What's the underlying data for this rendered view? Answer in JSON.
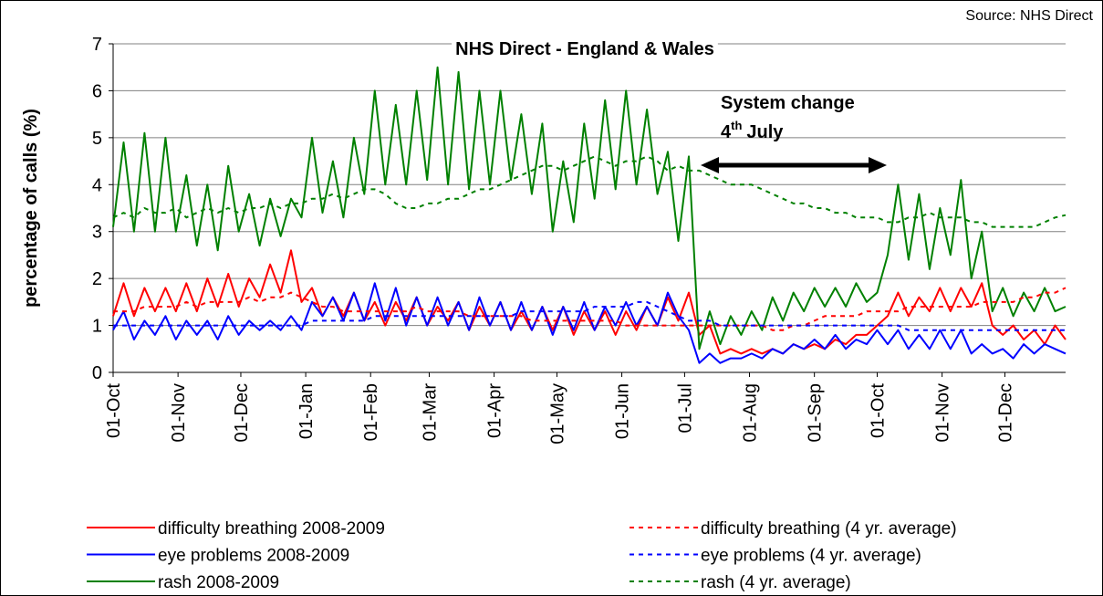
{
  "chart_data": {
    "type": "line",
    "title": "NHS Direct - England & Wales",
    "source": "Source: NHS Direct",
    "y_label": "percentage of calls (%)",
    "annotation": {
      "line1": "System change",
      "day": "4",
      "suffix": "th",
      "month": "July"
    },
    "x": [
      0,
      5,
      10,
      15,
      20,
      25,
      30,
      35,
      40,
      45,
      50,
      55,
      60,
      65,
      70,
      75,
      80,
      85,
      90,
      95,
      100,
      105,
      110,
      115,
      120,
      125,
      130,
      135,
      140,
      145,
      150,
      155,
      160,
      165,
      170,
      175,
      180,
      185,
      190,
      195,
      200,
      205,
      210,
      215,
      220,
      225,
      230,
      235,
      240,
      245,
      250,
      255,
      260,
      265,
      270,
      275,
      280,
      285,
      290,
      295,
      300,
      305,
      310,
      315,
      320,
      325,
      330,
      335,
      340,
      345,
      350,
      355,
      360,
      365,
      370,
      375,
      380,
      385,
      390,
      395,
      400,
      405,
      410,
      415,
      420,
      425,
      430,
      435,
      440,
      445,
      450,
      455
    ],
    "xlim": [
      0,
      455
    ],
    "xticks": [
      {
        "value": 0,
        "label": "01-Oct"
      },
      {
        "value": 31,
        "label": "01-Nov"
      },
      {
        "value": 61,
        "label": "01-Dec"
      },
      {
        "value": 92,
        "label": "01-Jan"
      },
      {
        "value": 123,
        "label": "01-Feb"
      },
      {
        "value": 151,
        "label": "01-Mar"
      },
      {
        "value": 182,
        "label": "01-Apr"
      },
      {
        "value": 212,
        "label": "01-May"
      },
      {
        "value": 243,
        "label": "01-Jun"
      },
      {
        "value": 273,
        "label": "01-Jul"
      },
      {
        "value": 304,
        "label": "01-Aug"
      },
      {
        "value": 335,
        "label": "01-Sep"
      },
      {
        "value": 365,
        "label": "01-Oct"
      },
      {
        "value": 396,
        "label": "01-Nov"
      },
      {
        "value": 426,
        "label": "01-Dec"
      }
    ],
    "ylim": [
      0,
      7
    ],
    "yticks": [
      0,
      1,
      2,
      3,
      4,
      5,
      6,
      7
    ],
    "grid": true,
    "series": [
      {
        "name": "difficulty breathing 2008-2009",
        "color": "#ff0000",
        "dash": false,
        "values": [
          1.2,
          1.9,
          1.2,
          1.8,
          1.3,
          1.8,
          1.3,
          1.9,
          1.3,
          2.0,
          1.4,
          2.1,
          1.4,
          2.0,
          1.6,
          2.3,
          1.7,
          2.6,
          1.5,
          1.8,
          1.2,
          1.6,
          1.2,
          1.7,
          1.1,
          1.5,
          1.0,
          1.5,
          1.1,
          1.6,
          1.0,
          1.4,
          1.1,
          1.5,
          0.9,
          1.4,
          1.0,
          1.5,
          0.9,
          1.3,
          0.9,
          1.4,
          0.9,
          1.4,
          0.8,
          1.3,
          0.9,
          1.3,
          0.8,
          1.3,
          0.9,
          1.4,
          1.0,
          1.6,
          1.1,
          1.7,
          0.8,
          1.0,
          0.4,
          0.5,
          0.4,
          0.5,
          0.4,
          0.5,
          0.4,
          0.6,
          0.5,
          0.6,
          0.5,
          0.7,
          0.6,
          0.8,
          0.8,
          1.0,
          1.2,
          1.7,
          1.2,
          1.6,
          1.3,
          1.8,
          1.3,
          1.8,
          1.4,
          1.9,
          1.0,
          0.8,
          1.0,
          0.7,
          0.9,
          0.6,
          1.0,
          0.7
        ]
      },
      {
        "name": "eye problems 2008-2009",
        "color": "#0000ff",
        "dash": false,
        "values": [
          0.9,
          1.3,
          0.7,
          1.1,
          0.8,
          1.2,
          0.7,
          1.1,
          0.8,
          1.1,
          0.7,
          1.2,
          0.8,
          1.1,
          0.9,
          1.1,
          0.9,
          1.2,
          0.9,
          1.5,
          1.2,
          1.6,
          1.1,
          1.7,
          1.1,
          1.9,
          1.1,
          1.8,
          1.0,
          1.6,
          1.0,
          1.6,
          1.0,
          1.5,
          0.9,
          1.6,
          1.0,
          1.5,
          0.9,
          1.5,
          0.9,
          1.4,
          0.8,
          1.4,
          0.9,
          1.5,
          0.9,
          1.4,
          1.0,
          1.5,
          1.0,
          1.4,
          1.0,
          1.7,
          1.2,
          0.9,
          0.2,
          0.4,
          0.2,
          0.3,
          0.3,
          0.4,
          0.3,
          0.5,
          0.4,
          0.6,
          0.5,
          0.7,
          0.5,
          0.8,
          0.5,
          0.7,
          0.6,
          0.9,
          0.6,
          0.9,
          0.5,
          0.8,
          0.5,
          0.9,
          0.5,
          0.9,
          0.4,
          0.6,
          0.4,
          0.5,
          0.3,
          0.6,
          0.4,
          0.6,
          0.5,
          0.4
        ]
      },
      {
        "name": "rash 2008-2009",
        "color": "#008000",
        "dash": false,
        "values": [
          3.1,
          4.9,
          3.0,
          5.1,
          3.0,
          5.0,
          3.0,
          4.2,
          2.7,
          4.0,
          2.6,
          4.4,
          3.0,
          3.8,
          2.7,
          3.7,
          2.9,
          3.7,
          3.3,
          5.0,
          3.4,
          4.5,
          3.3,
          5.0,
          3.8,
          6.0,
          4.0,
          5.7,
          4.0,
          6.0,
          4.1,
          6.5,
          4.0,
          6.4,
          3.9,
          6.0,
          4.0,
          6.0,
          4.1,
          5.5,
          3.8,
          5.3,
          3.0,
          4.5,
          3.2,
          5.3,
          3.7,
          5.8,
          3.9,
          6.0,
          4.0,
          5.6,
          3.8,
          4.7,
          2.8,
          4.6,
          0.5,
          1.3,
          0.6,
          1.2,
          0.8,
          1.3,
          0.9,
          1.6,
          1.1,
          1.7,
          1.3,
          1.8,
          1.4,
          1.8,
          1.4,
          1.9,
          1.5,
          1.7,
          2.5,
          4.0,
          2.4,
          3.8,
          2.2,
          3.5,
          2.5,
          4.1,
          2.0,
          3.0,
          1.3,
          1.8,
          1.2,
          1.7,
          1.3,
          1.8,
          1.3,
          1.4
        ]
      },
      {
        "name": "difficulty breathing (4 yr. average)",
        "color": "#ff0000",
        "dash": true,
        "values": [
          1.3,
          1.3,
          1.3,
          1.4,
          1.4,
          1.4,
          1.4,
          1.5,
          1.4,
          1.5,
          1.5,
          1.5,
          1.5,
          1.6,
          1.5,
          1.6,
          1.6,
          1.7,
          1.6,
          1.5,
          1.4,
          1.4,
          1.3,
          1.3,
          1.3,
          1.3,
          1.3,
          1.3,
          1.3,
          1.4,
          1.3,
          1.3,
          1.3,
          1.3,
          1.2,
          1.2,
          1.2,
          1.2,
          1.2,
          1.2,
          1.1,
          1.1,
          1.1,
          1.1,
          1.1,
          1.1,
          1.1,
          1.1,
          1.1,
          1.0,
          1.0,
          1.0,
          1.0,
          1.0,
          1.0,
          1.0,
          1.0,
          1.0,
          1.0,
          1.0,
          1.0,
          1.0,
          1.0,
          0.9,
          0.9,
          1.0,
          1.0,
          1.1,
          1.2,
          1.2,
          1.2,
          1.2,
          1.3,
          1.3,
          1.3,
          1.3,
          1.4,
          1.4,
          1.4,
          1.4,
          1.4,
          1.4,
          1.4,
          1.5,
          1.5,
          1.5,
          1.5,
          1.6,
          1.6,
          1.7,
          1.7,
          1.8
        ]
      },
      {
        "name": "eye problems (4 yr. average)",
        "color": "#0000ff",
        "dash": true,
        "values": [
          1.0,
          1.0,
          1.0,
          1.0,
          1.0,
          1.0,
          1.0,
          1.0,
          1.0,
          1.0,
          1.0,
          1.0,
          1.0,
          1.0,
          1.0,
          1.0,
          1.0,
          1.0,
          1.0,
          1.1,
          1.1,
          1.1,
          1.1,
          1.1,
          1.1,
          1.2,
          1.2,
          1.2,
          1.2,
          1.2,
          1.2,
          1.2,
          1.2,
          1.2,
          1.2,
          1.2,
          1.2,
          1.2,
          1.2,
          1.3,
          1.3,
          1.3,
          1.3,
          1.3,
          1.3,
          1.3,
          1.4,
          1.4,
          1.4,
          1.4,
          1.5,
          1.5,
          1.4,
          1.3,
          1.2,
          1.1,
          1.1,
          1.1,
          1.0,
          1.0,
          1.0,
          1.0,
          1.0,
          1.0,
          1.0,
          1.0,
          1.0,
          1.0,
          1.0,
          1.0,
          1.0,
          1.0,
          1.0,
          1.0,
          1.0,
          1.0,
          0.9,
          0.9,
          0.9,
          0.9,
          0.9,
          0.9,
          0.9,
          0.9,
          0.9,
          0.9,
          0.9,
          0.9,
          0.9,
          0.9,
          0.9,
          0.9
        ]
      },
      {
        "name": "rash (4 yr. average)",
        "color": "#008000",
        "dash": true,
        "values": [
          3.3,
          3.4,
          3.3,
          3.5,
          3.4,
          3.4,
          3.5,
          3.3,
          3.4,
          3.5,
          3.4,
          3.5,
          3.4,
          3.5,
          3.5,
          3.6,
          3.5,
          3.6,
          3.6,
          3.7,
          3.7,
          3.8,
          3.7,
          3.8,
          3.9,
          3.9,
          3.8,
          3.6,
          3.5,
          3.5,
          3.6,
          3.6,
          3.7,
          3.7,
          3.8,
          3.9,
          3.9,
          4.0,
          4.1,
          4.2,
          4.3,
          4.4,
          4.4,
          4.3,
          4.4,
          4.5,
          4.6,
          4.5,
          4.4,
          4.5,
          4.5,
          4.6,
          4.5,
          4.3,
          4.4,
          4.3,
          4.3,
          4.2,
          4.1,
          4.0,
          4.0,
          4.0,
          3.9,
          3.8,
          3.7,
          3.6,
          3.6,
          3.5,
          3.5,
          3.4,
          3.4,
          3.3,
          3.3,
          3.3,
          3.2,
          3.2,
          3.3,
          3.3,
          3.4,
          3.3,
          3.3,
          3.3,
          3.2,
          3.2,
          3.1,
          3.1,
          3.1,
          3.1,
          3.1,
          3.2,
          3.3,
          3.35
        ]
      }
    ]
  }
}
